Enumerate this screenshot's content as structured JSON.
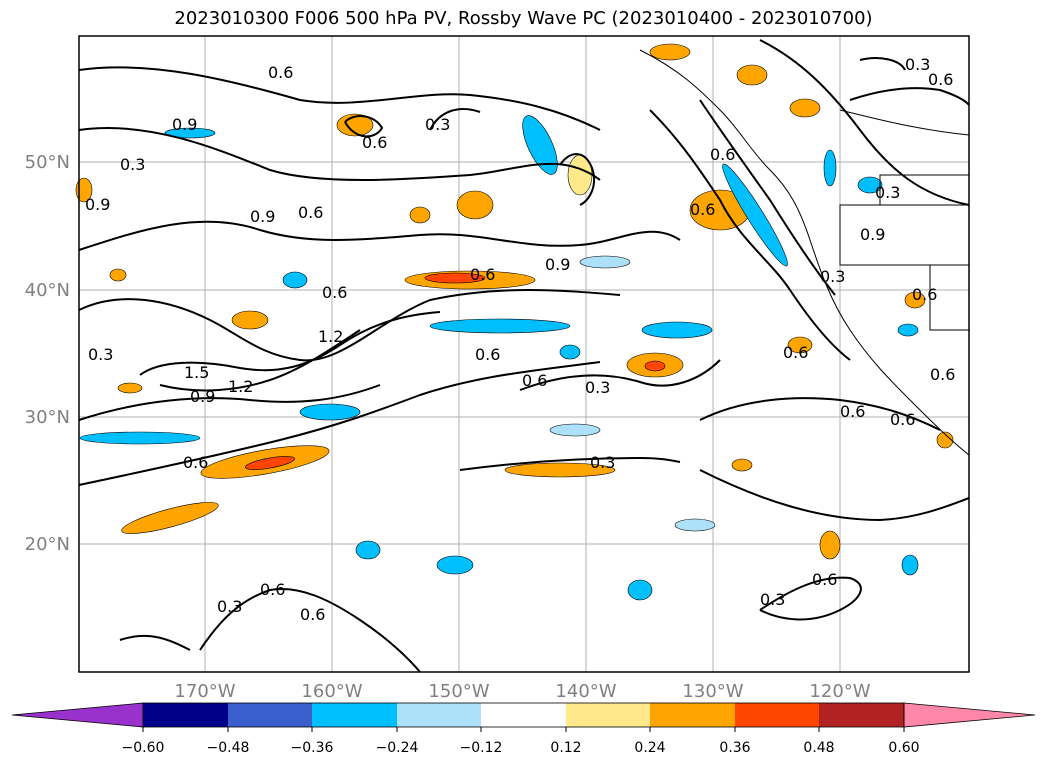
{
  "title": "2023010300 F006 500 hPa PV, Rossby Wave PC (2023010400 - 2023010700)",
  "map": {
    "lat_labels": [
      "50°N",
      "40°N",
      "30°N",
      "20°N"
    ],
    "lon_labels": [
      "170°W",
      "160°W",
      "150°W",
      "140°W",
      "130°W",
      "120°W"
    ],
    "contour_labels": [
      "0.6",
      "0.9",
      "0.3",
      "0.6",
      "0.3",
      "0.9",
      "0.6",
      "0.9",
      "0.6",
      "0.9",
      "0.6",
      "0.6",
      "1.2",
      "1.5",
      "1.2",
      "0.9",
      "0.6",
      "0.6",
      "0.3",
      "0.3",
      "0.6",
      "0.6",
      "0.3",
      "0.6",
      "0.3",
      "0.3",
      "0.6",
      "0.6",
      "0.6",
      "0.3",
      "0.6",
      "0.6",
      "0.3",
      "0.6",
      "0.3",
      "0.9",
      "0.6",
      "0.6"
    ]
  },
  "colorbar": {
    "colors": [
      "#9932CC",
      "#00008B",
      "#3A5FCD",
      "#00BFFF",
      "#ADE1FA",
      "#FFFFFF",
      "#FFE98A",
      "#FFA500",
      "#FF4500",
      "#B22222",
      "#FF88AA"
    ],
    "ticks": [
      "−0.60",
      "−0.48",
      "−0.36",
      "−0.24",
      "−0.12",
      "0.12",
      "0.24",
      "0.36",
      "0.48",
      "0.60"
    ]
  }
}
